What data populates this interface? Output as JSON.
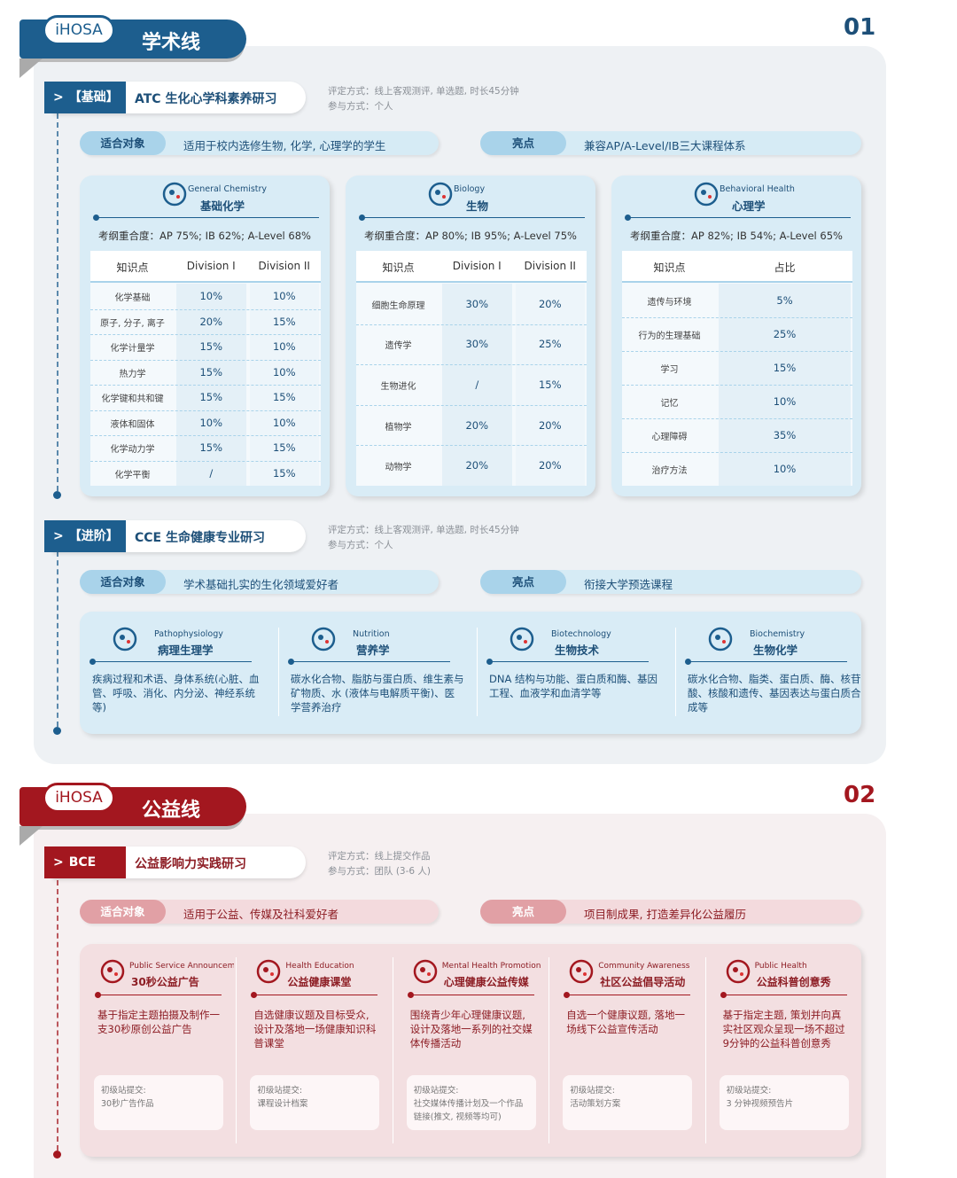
{
  "sections": [
    {
      "badge": "iHOSA",
      "title": "学术线",
      "number": "01",
      "courses": [
        {
          "level": "【基础】",
          "name": "ATC 生化心学科素养研习",
          "notes": [
            "评定方式：线上客观测评, 单选题, 时长45分钟",
            "参与方式：个人"
          ],
          "audience_label": "适合对象",
          "audience": "适用于校内选修生物, 化学, 心理学的学生",
          "highlight_label": "亮点",
          "highlight": "兼容AP/A-Level/IB三大课程体系",
          "subjects": [
            {
              "en": "General Chemistry",
              "zh": "基础化学",
              "overlap": "考纲重合度：AP 75%; IB 62%; A-Level 68%",
              "header": [
                "知识点",
                "Division I",
                "Division II"
              ],
              "rows": [
                [
                  "化学基础",
                  "10%",
                  "10%"
                ],
                [
                  "原子, 分子, 离子",
                  "20%",
                  "15%"
                ],
                [
                  "化学计量学",
                  "15%",
                  "10%"
                ],
                [
                  "热力学",
                  "15%",
                  "10%"
                ],
                [
                  "化学键和共和键",
                  "15%",
                  "15%"
                ],
                [
                  "液体和固体",
                  "10%",
                  "10%"
                ],
                [
                  "化学动力学",
                  "15%",
                  "15%"
                ],
                [
                  "化学平衡",
                  "/",
                  "15%"
                ]
              ]
            },
            {
              "en": "Biology",
              "zh": "生物",
              "overlap": "考纲重合度：AP 80%; IB 95%; A-Level 75%",
              "header": [
                "知识点",
                "Division I",
                "Division II"
              ],
              "rows": [
                [
                  "细胞生命原理",
                  "30%",
                  "20%"
                ],
                [
                  "遗传学",
                  "30%",
                  "25%"
                ],
                [
                  "生物进化",
                  "/",
                  "15%"
                ],
                [
                  "植物学",
                  "20%",
                  "20%"
                ],
                [
                  "动物学",
                  "20%",
                  "20%"
                ]
              ]
            },
            {
              "en": "Behavioral Health",
              "zh": "心理学",
              "overlap": "考纲重合度：AP 82%; IB 54%; A-Level 65%",
              "header": [
                "知识点",
                "占比"
              ],
              "rows": [
                [
                  "遗传与环境",
                  "5%"
                ],
                [
                  "行为的生理基础",
                  "25%"
                ],
                [
                  "学习",
                  "15%"
                ],
                [
                  "记忆",
                  "10%"
                ],
                [
                  "心理障碍",
                  "35%"
                ],
                [
                  "治疗方法",
                  "10%"
                ]
              ]
            }
          ]
        },
        {
          "level": "【进阶】",
          "name": "CCE 生命健康专业研习",
          "notes": [
            "评定方式：线上客观测评, 单选题, 时长45分钟",
            "参与方式：个人"
          ],
          "audience_label": "适合对象",
          "audience": "学术基础扎实的生化领域爱好者",
          "highlight_label": "亮点",
          "highlight": "衔接大学预选课程",
          "topics": [
            {
              "en": "Pathophysiology",
              "zh": "病理生理学",
              "text": "疾病过程和术语、身体系统(心脏、血管、呼吸、消化、内分泌、神经系统等)"
            },
            {
              "en": "Nutrition",
              "zh": "营养学",
              "text": "碳水化合物、脂肪与蛋白质、维生素与矿物质、水 (液体与电解质平衡)、医学营养治疗"
            },
            {
              "en": "Biotechnology",
              "zh": "生物技术",
              "text": "DNA 结构与功能、蛋白质和酶、基因工程、血液学和血清学等"
            },
            {
              "en": "Biochemistry",
              "zh": "生物化学",
              "text": "碳水化合物、脂类、蛋白质、酶、核苷酸、核酸和遗传、基因表达与蛋白质合成等"
            }
          ]
        }
      ]
    },
    {
      "badge": "iHOSA",
      "title": "公益线",
      "number": "02",
      "courses": [
        {
          "level": "BCE",
          "name": "公益影响力实践研习",
          "notes": [
            "评定方式：线上提交作品",
            "参与方式：团队 (3-6 人)"
          ],
          "audience_label": "适合对象",
          "audience": "适用于公益、传媒及社科爱好者",
          "highlight_label": "亮点",
          "highlight": "项目制成果, 打造差异化公益履历",
          "projects": [
            {
              "en": "Public Service Announcement",
              "zh": "30秒公益广告",
              "text": "基于指定主题拍摄及制作一支30秒原创公益广告",
              "submit_label": "初级站提交:",
              "submit": "30秒广告作品"
            },
            {
              "en": "Health Education",
              "zh": "公益健康课堂",
              "text": "自选健康议题及目标受众, 设计及落地一场健康知识科普课堂",
              "submit_label": "初级站提交:",
              "submit": "课程设计档案"
            },
            {
              "en": "Mental Health Promotion",
              "zh": "心理健康公益传媒",
              "text": "围绕青少年心理健康议题, 设计及落地一系列的社交媒体传播活动",
              "submit_label": "初级站提交:",
              "submit": "社交媒体传播计划及一个作品链接(推文, 视频等均可)"
            },
            {
              "en": "Community Awareness",
              "zh": "社区公益倡导活动",
              "text": "自选一个健康议题, 落地一场线下公益宣传活动",
              "submit_label": "初级站提交:",
              "submit": "活动策划方案"
            },
            {
              "en": "Public Health",
              "zh": "公益科普创意秀",
              "text": "基于指定主题, 策划并向真实社区观众呈现一场不超过9分钟的公益科普创意秀",
              "submit_label": "初级站提交:",
              "submit": "3 分钟视频预告片"
            }
          ]
        }
      ]
    }
  ]
}
